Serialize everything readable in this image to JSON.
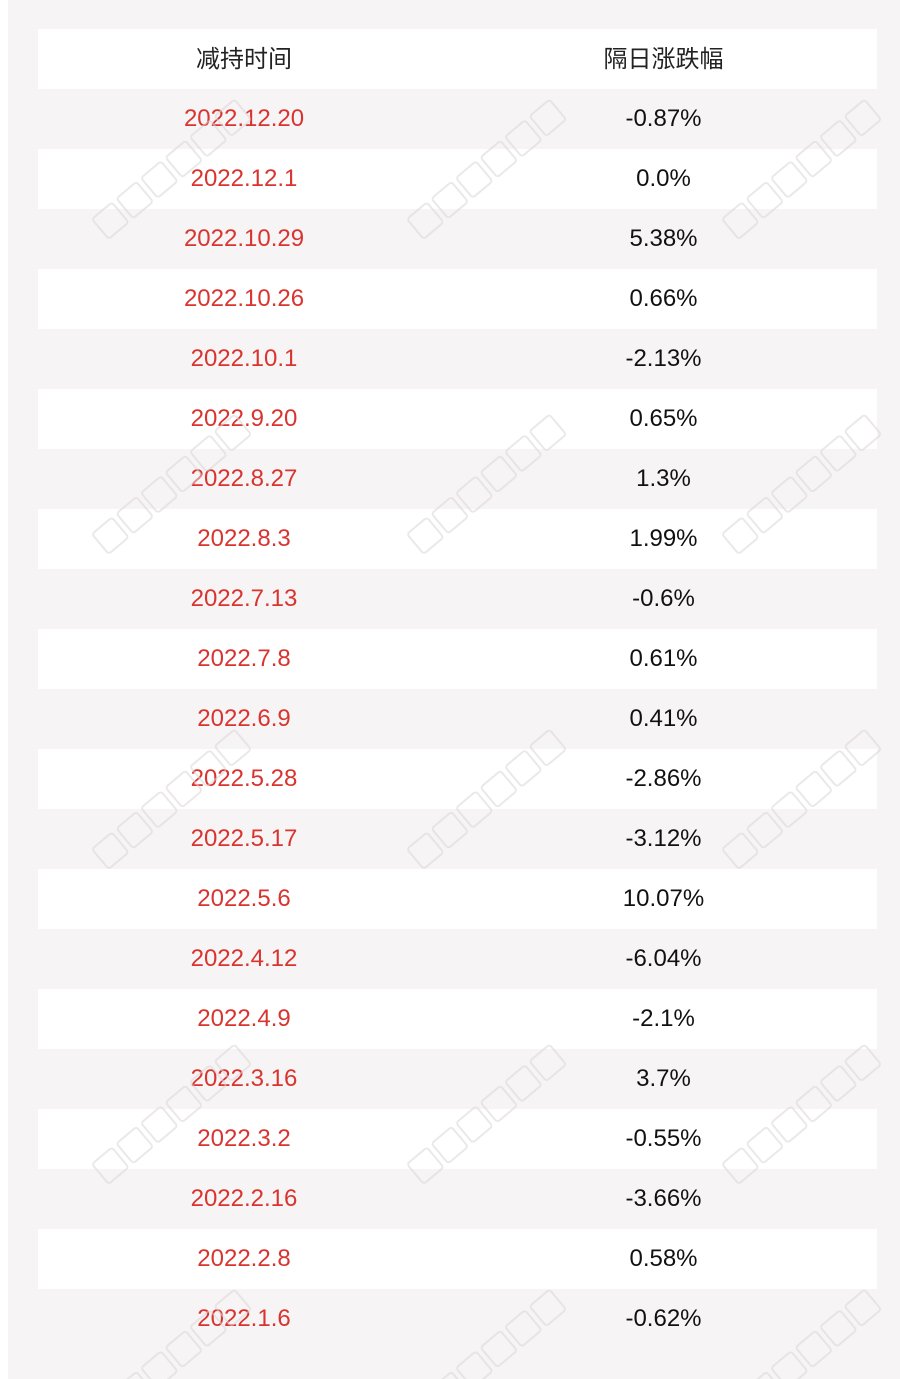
{
  "table": {
    "headers": {
      "date": "减持时间",
      "change": "隔日涨跌幅"
    },
    "rows": [
      {
        "date": "2022.12.20",
        "change": "-0.87%"
      },
      {
        "date": "2022.12.1",
        "change": "0.0%"
      },
      {
        "date": "2022.10.29",
        "change": "5.38%"
      },
      {
        "date": "2022.10.26",
        "change": "0.66%"
      },
      {
        "date": "2022.10.1",
        "change": "-2.13%"
      },
      {
        "date": "2022.9.20",
        "change": "0.65%"
      },
      {
        "date": "2022.8.27",
        "change": "1.3%"
      },
      {
        "date": "2022.8.3",
        "change": "1.99%"
      },
      {
        "date": "2022.7.13",
        "change": "-0.6%"
      },
      {
        "date": "2022.7.8",
        "change": "0.61%"
      },
      {
        "date": "2022.6.9",
        "change": "0.41%"
      },
      {
        "date": "2022.5.28",
        "change": "-2.86%"
      },
      {
        "date": "2022.5.17",
        "change": "-3.12%"
      },
      {
        "date": "2022.5.6",
        "change": "10.07%"
      },
      {
        "date": "2022.4.12",
        "change": "-6.04%"
      },
      {
        "date": "2022.4.9",
        "change": "-2.1%"
      },
      {
        "date": "2022.3.16",
        "change": "3.7%"
      },
      {
        "date": "2022.3.2",
        "change": "-0.55%"
      },
      {
        "date": "2022.2.16",
        "change": "-3.66%"
      },
      {
        "date": "2022.2.8",
        "change": "0.58%"
      },
      {
        "date": "2022.1.6",
        "change": "-0.62%"
      }
    ]
  },
  "watermark": {
    "text": "每日经济新闻"
  },
  "colors": {
    "date_text": "#d9342f",
    "change_text": "#111111",
    "band": "#f7f4f5",
    "row_white": "#ffffff"
  }
}
